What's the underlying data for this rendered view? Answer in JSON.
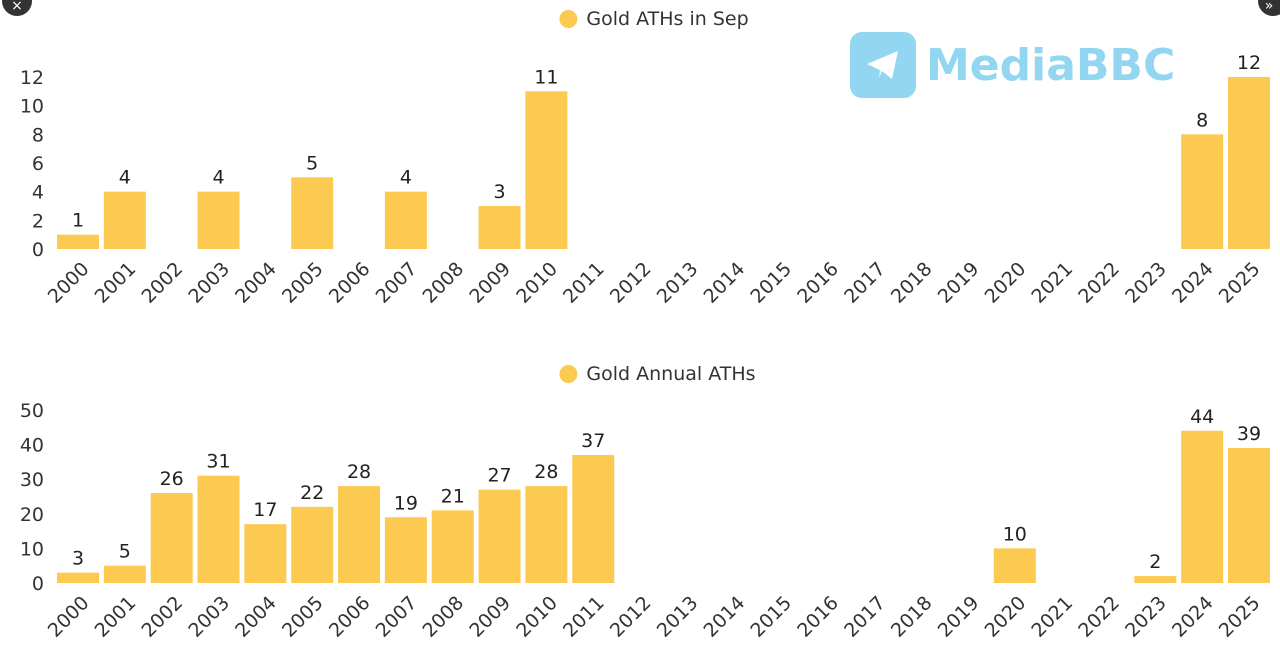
{
  "chart_data": [
    {
      "type": "bar",
      "title": "Gold ATHs in Sep",
      "legend": [
        "Gold ATHs in Sep"
      ],
      "legend_placement": "top-center",
      "categories": [
        "2000",
        "2001",
        "2002",
        "2003",
        "2004",
        "2005",
        "2006",
        "2007",
        "2008",
        "2009",
        "2010",
        "2011",
        "2012",
        "2013",
        "2014",
        "2015",
        "2016",
        "2017",
        "2018",
        "2019",
        "2020",
        "2021",
        "2022",
        "2023",
        "2024",
        "2025"
      ],
      "values": [
        1,
        4,
        0,
        4,
        0,
        5,
        0,
        4,
        0,
        3,
        11,
        0,
        0,
        0,
        0,
        0,
        0,
        0,
        0,
        0,
        0,
        0,
        0,
        0,
        8,
        12
      ],
      "yticks": [
        0,
        2,
        4,
        6,
        8,
        10,
        12
      ],
      "ylim": [
        0,
        12
      ],
      "xlabel": "",
      "ylabel": "",
      "color": "#fcc951",
      "grid": false
    },
    {
      "type": "bar",
      "title": "Gold Annual ATHs",
      "legend": [
        "Gold Annual ATHs"
      ],
      "legend_placement": "top-center",
      "categories": [
        "2000",
        "2001",
        "2002",
        "2003",
        "2004",
        "2005",
        "2006",
        "2007",
        "2008",
        "2009",
        "2010",
        "2011",
        "2012",
        "2013",
        "2014",
        "2015",
        "2016",
        "2017",
        "2018",
        "2019",
        "2020",
        "2021",
        "2022",
        "2023",
        "2024",
        "2025"
      ],
      "values": [
        3,
        5,
        26,
        31,
        17,
        22,
        28,
        19,
        21,
        27,
        28,
        37,
        0,
        0,
        0,
        0,
        0,
        0,
        0,
        0,
        10,
        0,
        0,
        2,
        44,
        39
      ],
      "yticks": [
        0,
        10,
        20,
        30,
        40,
        50
      ],
      "ylim": [
        0,
        50
      ],
      "xlabel": "",
      "ylabel": "",
      "color": "#fcc951",
      "grid": false
    }
  ],
  "watermark": {
    "text": "MediaBBC",
    "icon": "telegram-icon"
  },
  "controls": {
    "close_icon": "×",
    "expand_icon": "»"
  }
}
